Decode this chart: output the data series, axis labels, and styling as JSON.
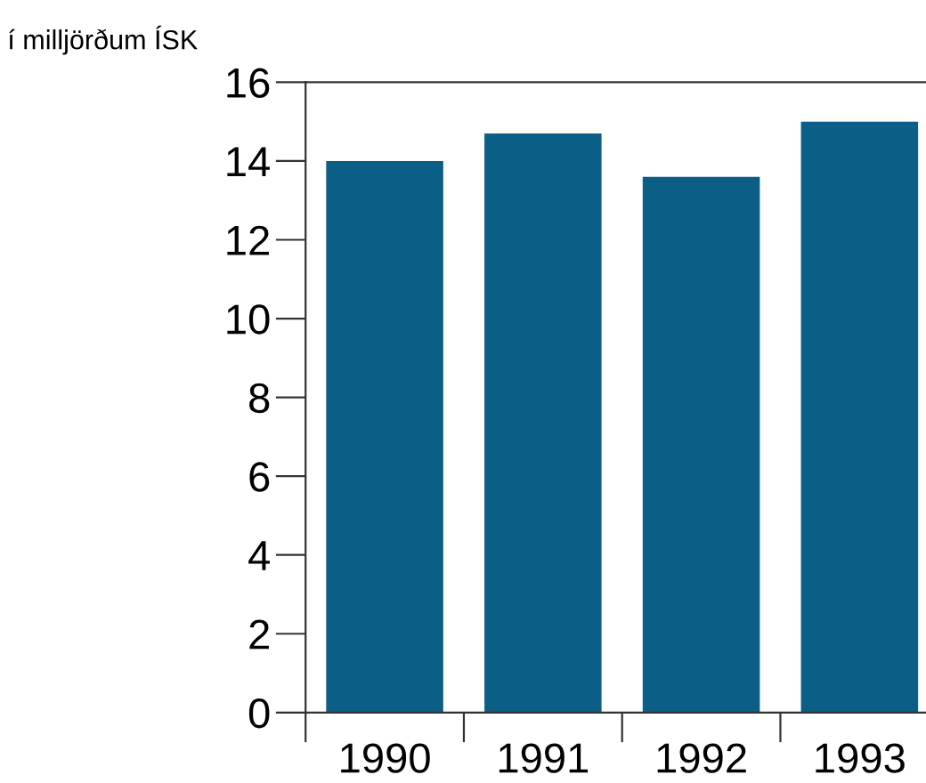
{
  "chart_data": {
    "type": "bar",
    "ylabel": "í milljörðum ÍSK",
    "categories": [
      "1990",
      "1991",
      "1992",
      "1993"
    ],
    "values": [
      14.0,
      14.7,
      13.6,
      15.0
    ],
    "color": "#0b5f86",
    "ylim": [
      0,
      16
    ],
    "yticks": [
      0,
      2,
      4,
      6,
      8,
      10,
      12,
      14,
      16
    ],
    "grid": false,
    "legend": false
  }
}
